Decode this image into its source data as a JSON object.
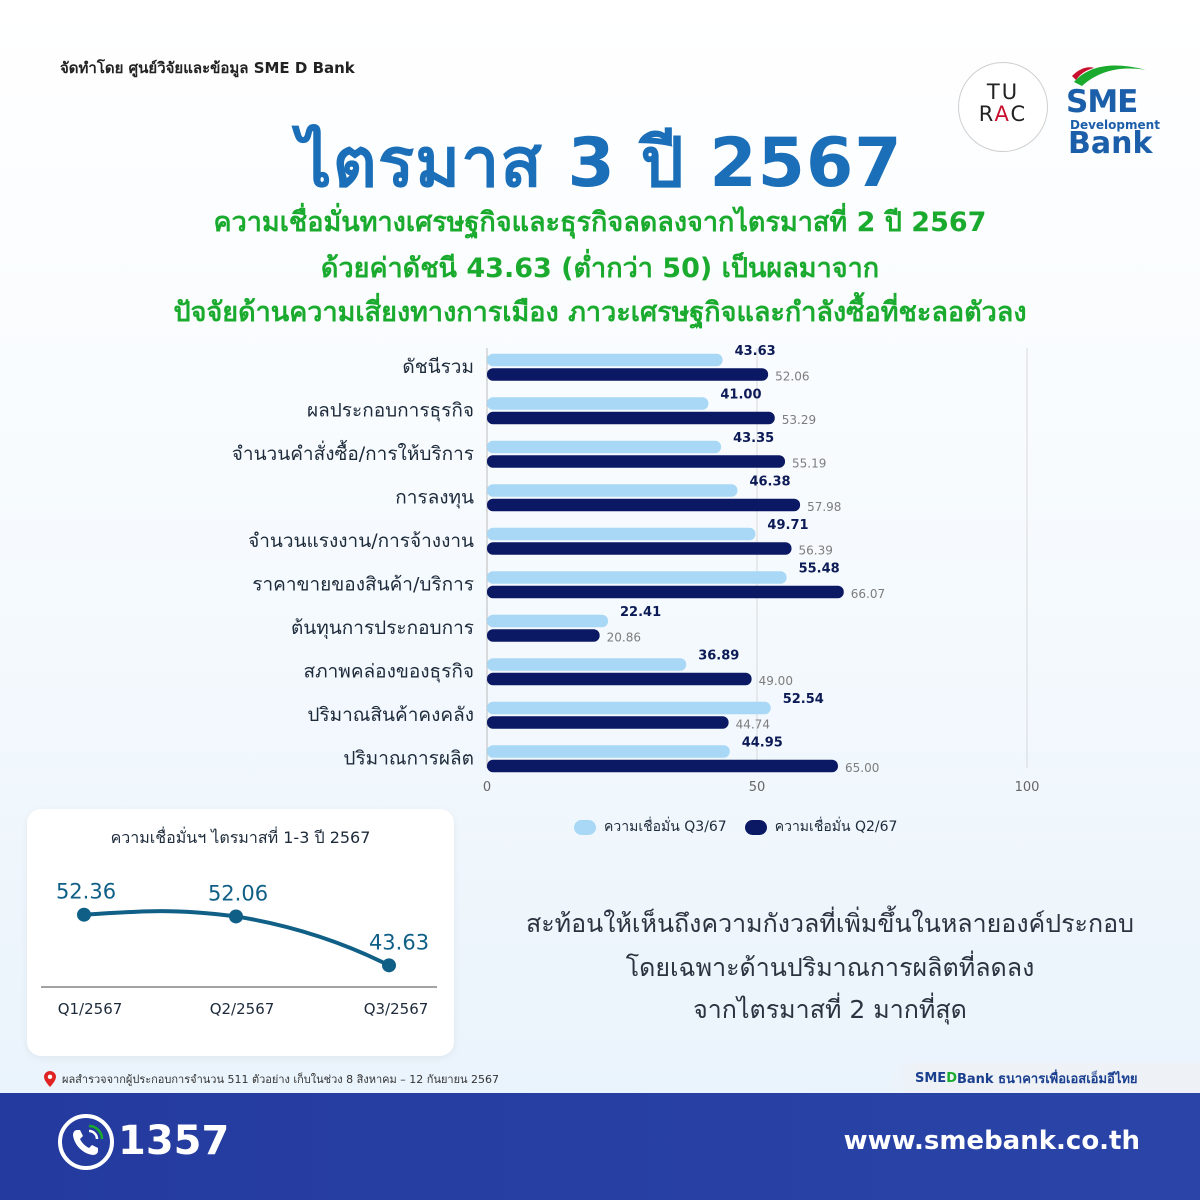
{
  "header": {
    "credit": "จัดทำโดย ศูนย์วิจัยและข้อมูล SME D Bank",
    "title": "ไตรมาส 3 ปี 2567",
    "subtitle_1": "ความเชื่อมั่นทางเศรษฐกิจและธุรกิจลดลงจากไตรมาสที่ 2 ปี 2567",
    "subtitle_2": "ด้วยค่าดัชนี 43.63 (ต่ำกว่า 50) เป็นผลมาจาก",
    "subtitle_3": "ปัจจัยด้านความเสี่ยงทางการเมือง ภาวะเศรษฐกิจและกำลังซื้อที่ชะลอตัวลง"
  },
  "logos": {
    "turac_line1": "TU",
    "turac_line2_a": "R",
    "turac_line2_b": "A",
    "turac_line2_c": "C",
    "sme": "SME",
    "development": "Development",
    "bank": "Bank"
  },
  "colors": {
    "q3": "#a8d8f5",
    "q2": "#0b1863",
    "title_blue": "#1b6fb8",
    "subtitle_green": "#1aab2e",
    "mini_line": "#0f5f86"
  },
  "chart_data": [
    {
      "type": "bar",
      "orientation": "horizontal",
      "categories": [
        "ดัชนีรวม",
        "ผลประกอบการธุรกิจ",
        "จำนวนคำสั่งซื้อ/การให้บริการ",
        "การลงทุน",
        "จำนวนแรงงาน/การจ้างงาน",
        "ราคาขายของสินค้า/บริการ",
        "ต้นทุนการประกอบการ",
        "สภาพคล่องของธุรกิจ",
        "ปริมาณสินค้าคงคลัง",
        "ปริมาณการผลิต"
      ],
      "series": [
        {
          "name": "ความเชื่อมั่น Q3/67",
          "values": [
            43.63,
            41.0,
            43.35,
            46.38,
            49.71,
            55.48,
            22.41,
            36.89,
            52.54,
            44.95
          ],
          "labels": [
            "43.63",
            "41.00",
            "43.35",
            "46.38",
            "49.71",
            "55.48",
            "22.41",
            "36.89",
            "52.54",
            "44.95"
          ]
        },
        {
          "name": "ความเชื่อมั่น Q2/67",
          "values": [
            52.06,
            53.29,
            55.19,
            57.98,
            56.39,
            66.07,
            20.86,
            49.0,
            44.74,
            65.0
          ],
          "labels": [
            "52.06",
            "53.29",
            "55.19",
            "57.98",
            "56.39",
            "66.07",
            "20.86",
            "49.00",
            "44.74",
            "65.00"
          ]
        }
      ],
      "xlim": [
        0,
        100
      ],
      "xticks": [
        "0",
        "50",
        "100"
      ],
      "grid": true,
      "legend": "bottom"
    },
    {
      "type": "line",
      "title": "ความเชื่อมั่นฯ ไตรมาสที่ 1-3 ปี 2567",
      "categories": [
        "Q1/2567",
        "Q2/2567",
        "Q3/2567"
      ],
      "values": [
        52.36,
        52.06,
        43.63
      ],
      "labels": [
        "52.36",
        "52.06",
        "43.63"
      ]
    }
  ],
  "reflection": {
    "line_1": "สะท้อนให้เห็นถึงความกังวลที่เพิ่มขึ้นในหลายองค์ประกอบ",
    "line_2": "โดยเฉพาะด้านปริมาณการผลิตที่ลดลง",
    "line_3": "จากไตรมาสที่ 2 มากที่สุด"
  },
  "note": "ผลสำรวจจากผู้ประกอบการจำนวน 511 ตัวอย่าง เก็บในช่วง 8 สิงหาคม – 12 กันยายน 2567",
  "tagline": {
    "part_1": "SME ",
    "part_2": "D",
    "part_3": " Bank ธนาคารเพื่อเอสเอ็มอีไทย"
  },
  "footer": {
    "hotline": "1357",
    "website": "www.smebank.co.th",
    "phone_icon": "phone-icon"
  }
}
